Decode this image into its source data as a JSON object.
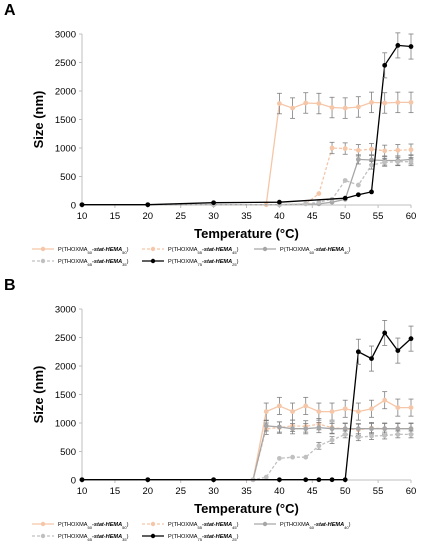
{
  "chart_data": [
    {
      "panel": "A",
      "type": "line",
      "xlabel": "Temperature (°C)",
      "ylabel": "Size (nm)",
      "xlim": [
        10,
        60
      ],
      "ylim": [
        0,
        3000
      ],
      "xticks": [
        10,
        15,
        20,
        25,
        30,
        35,
        40,
        45,
        50,
        55,
        60
      ],
      "yticks": [
        0,
        500,
        1000,
        1500,
        2000,
        2500,
        3000
      ],
      "grid": false,
      "legend_position": "bottom",
      "series": [
        {
          "name": "P(THOXMA",
          "sub1": "50",
          "mid": "-stat-HEMA",
          "sub2": "50",
          "color": "#f5c6a8",
          "dash": false,
          "x": [
            10,
            20,
            30,
            38,
            40,
            42,
            44,
            46,
            48,
            50,
            52,
            54,
            56,
            58,
            60
          ],
          "y": [
            5,
            5,
            5,
            5,
            1780,
            1700,
            1790,
            1780,
            1710,
            1700,
            1720,
            1800,
            1790,
            1800,
            1800
          ],
          "err": [
            0,
            0,
            0,
            0,
            180,
            180,
            180,
            180,
            180,
            180,
            180,
            180,
            180,
            180,
            180
          ]
        },
        {
          "name": "P(THOXMA",
          "sub1": "55",
          "mid": "-stat-HEMA",
          "sub2": "45",
          "color": "#f5c6a8",
          "dash": true,
          "x": [
            10,
            20,
            30,
            40,
            44,
            46,
            48,
            50,
            52,
            54,
            56,
            58,
            60
          ],
          "y": [
            5,
            5,
            5,
            5,
            20,
            200,
            1000,
            990,
            960,
            980,
            950,
            960,
            970
          ],
          "err": [
            0,
            0,
            0,
            0,
            0,
            0,
            100,
            100,
            100,
            100,
            100,
            100,
            100
          ]
        },
        {
          "name": "P(THOXMA",
          "sub1": "60",
          "mid": "-stat-HEMA",
          "sub2": "40",
          "color": "#a6a6a6",
          "dash": false,
          "x": [
            10,
            20,
            30,
            40,
            46,
            48,
            50,
            52,
            54,
            56,
            58,
            60
          ],
          "y": [
            5,
            5,
            5,
            5,
            20,
            50,
            100,
            800,
            790,
            780,
            780,
            800
          ],
          "err": [
            0,
            0,
            0,
            0,
            0,
            0,
            0,
            80,
            80,
            80,
            80,
            80
          ]
        },
        {
          "name": "P(THOXMA",
          "sub1": "65",
          "mid": "-stat-HEMA",
          "sub2": "35",
          "color": "#c0c0c0",
          "dash": true,
          "x": [
            10,
            20,
            30,
            40,
            44,
            46,
            48,
            50,
            52,
            54,
            56,
            58,
            60
          ],
          "y": [
            5,
            5,
            5,
            5,
            20,
            50,
            100,
            430,
            350,
            700,
            750,
            760,
            760
          ],
          "err": [
            0,
            0,
            0,
            0,
            0,
            0,
            0,
            0,
            0,
            70,
            70,
            70,
            70
          ]
        },
        {
          "name": "P(THOXMA",
          "sub1": "75",
          "mid": "-stat-HEMA",
          "sub2": "25",
          "color": "#000000",
          "dash": false,
          "x": [
            10,
            20,
            30,
            40,
            50,
            52,
            54,
            56,
            58,
            60
          ],
          "y": [
            5,
            5,
            40,
            50,
            120,
            180,
            230,
            2450,
            2800,
            2780
          ],
          "err": [
            0,
            0,
            0,
            0,
            0,
            0,
            0,
            220,
            220,
            220
          ]
        }
      ]
    },
    {
      "panel": "B",
      "type": "line",
      "xlabel": "Temperature (°C)",
      "ylabel": "Size (nm)",
      "xlim": [
        10,
        60
      ],
      "ylim": [
        0,
        3000
      ],
      "xticks": [
        10,
        15,
        20,
        25,
        30,
        35,
        40,
        45,
        50,
        55,
        60
      ],
      "yticks": [
        0,
        500,
        1000,
        1500,
        2000,
        2500,
        3000
      ],
      "grid": false,
      "legend_position": "bottom",
      "series": [
        {
          "name": "P(THOXMA",
          "sub1": "50",
          "mid": "-stat-HEMA",
          "sub2": "50",
          "color": "#f5c6a8",
          "dash": false,
          "x": [
            10,
            20,
            30,
            36,
            38,
            40,
            42,
            44,
            46,
            48,
            50,
            52,
            54,
            56,
            58,
            60
          ],
          "y": [
            5,
            5,
            5,
            5,
            1200,
            1300,
            1200,
            1300,
            1200,
            1200,
            1250,
            1200,
            1250,
            1400,
            1270,
            1270
          ],
          "err": [
            0,
            0,
            0,
            0,
            150,
            150,
            150,
            150,
            150,
            150,
            150,
            150,
            150,
            150,
            150,
            150
          ]
        },
        {
          "name": "P(THOXMA",
          "sub1": "55",
          "mid": "-stat-HEMA",
          "sub2": "45",
          "color": "#f5c6a8",
          "dash": true,
          "x": [
            10,
            20,
            30,
            36,
            38,
            40,
            42,
            44,
            46,
            48,
            50,
            52,
            54,
            56,
            58,
            60
          ],
          "y": [
            5,
            5,
            5,
            5,
            900,
            920,
            950,
            940,
            980,
            920,
            900,
            880,
            910,
            900,
            900,
            900
          ],
          "err": [
            0,
            0,
            0,
            0,
            100,
            100,
            100,
            100,
            100,
            100,
            100,
            100,
            100,
            100,
            100,
            100
          ]
        },
        {
          "name": "P(THOXMA",
          "sub1": "60",
          "mid": "-stat-HEMA",
          "sub2": "40",
          "color": "#a6a6a6",
          "dash": false,
          "x": [
            10,
            20,
            30,
            36,
            38,
            40,
            42,
            44,
            46,
            48,
            50,
            52,
            54,
            56,
            58,
            60
          ],
          "y": [
            5,
            5,
            5,
            5,
            950,
            930,
            900,
            900,
            920,
            900,
            900,
            900,
            900,
            900,
            900,
            900
          ],
          "err": [
            0,
            0,
            0,
            0,
            90,
            90,
            90,
            90,
            90,
            90,
            90,
            90,
            90,
            90,
            90,
            90
          ]
        },
        {
          "name": "P(THOXMA",
          "sub1": "65",
          "mid": "-stat-HEMA",
          "sub2": "35",
          "color": "#c0c0c0",
          "dash": true,
          "x": [
            10,
            20,
            30,
            36,
            38,
            40,
            42,
            44,
            46,
            48,
            50,
            52,
            54,
            56,
            58,
            60
          ],
          "y": [
            5,
            5,
            5,
            5,
            50,
            380,
            400,
            400,
            600,
            700,
            800,
            750,
            770,
            780,
            800,
            800
          ],
          "err": [
            0,
            0,
            0,
            0,
            0,
            0,
            0,
            0,
            60,
            60,
            60,
            60,
            60,
            60,
            60,
            60
          ]
        },
        {
          "name": "P(THOXMA",
          "sub1": "75",
          "mid": "-stat-HEMA",
          "sub2": "25",
          "color": "#000000",
          "dash": false,
          "x": [
            10,
            20,
            30,
            40,
            44,
            46,
            48,
            50,
            52,
            54,
            56,
            58,
            60
          ],
          "y": [
            5,
            5,
            5,
            5,
            5,
            5,
            5,
            5,
            2250,
            2130,
            2580,
            2270,
            2480
          ],
          "err": [
            0,
            0,
            0,
            0,
            0,
            0,
            0,
            0,
            220,
            220,
            220,
            220,
            220
          ]
        }
      ]
    }
  ]
}
